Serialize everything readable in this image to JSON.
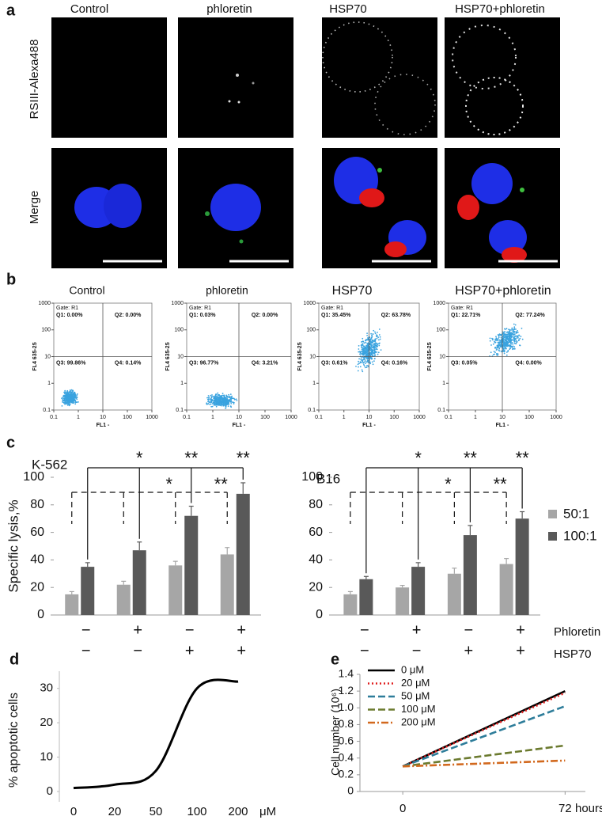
{
  "panel_labels": [
    "a",
    "b",
    "c",
    "d",
    "e"
  ],
  "microscopy": {
    "columns": [
      "Control",
      "phloretin",
      "HSP70",
      "HSP70+phloretin"
    ],
    "rows": [
      "RSIII-Alexa488",
      "Merge"
    ]
  },
  "flow_cytometry": {
    "x_label": "FL1 -",
    "y_label": "FL4 635-25",
    "ticks": [
      0.1,
      1,
      10,
      100,
      1000
    ],
    "plots": [
      {
        "title": "Control",
        "gate": "Gate: R1",
        "quadrants": [
          "Q1: 0.00%",
          "Q2: 0.00%",
          "Q3: 99.86%",
          "Q4: 0.14%"
        ]
      },
      {
        "title": "phloretin",
        "gate": "Gate: R1",
        "quadrants": [
          "Q1: 0.03%",
          "Q2: 0.00%",
          "Q3: 96.77%",
          "Q4: 3.21%"
        ]
      },
      {
        "title": "HSP70",
        "gate": "Gate: R1",
        "quadrants": [
          "Q1: 35.45%",
          "Q2: 63.78%",
          "Q3: 0.61%",
          "Q4: 0.16%"
        ]
      },
      {
        "title": "HSP70+phloretin",
        "gate": "Gate: R1",
        "quadrants": [
          "Q1: 22.71%",
          "Q2: 77.24%",
          "Q3: 0.05%",
          "Q4: 0.00%"
        ]
      }
    ]
  },
  "chart_data": [
    {
      "type": "grouped_bar",
      "y_label": "Specific lysis,%",
      "ylim": [
        0,
        100
      ],
      "yticks": [
        0,
        20,
        40,
        60,
        80,
        100
      ],
      "series": [
        {
          "name": "50:1",
          "color": "#a6a6a6"
        },
        {
          "name": "100:1",
          "color": "#595959"
        }
      ],
      "condition_names": [
        "Phloretin",
        "HSP70"
      ],
      "panels": [
        {
          "title": "K-562",
          "conditions": [
            [
              "−",
              "+",
              "−",
              "+"
            ],
            [
              "−",
              "−",
              "+",
              "+"
            ]
          ],
          "values": [
            [
              15,
              22,
              36,
              44
            ],
            [
              35,
              47,
              72,
              88
            ]
          ],
          "errors": [
            [
              2,
              2.5,
              3,
              5
            ],
            [
              3,
              6,
              7,
              8
            ]
          ],
          "significance": {
            "solid": [
              "*",
              "**",
              "**"
            ],
            "dashed": [
              "*",
              "**"
            ]
          }
        },
        {
          "title": "B16",
          "conditions": [
            [
              "−",
              "+",
              "−",
              "+"
            ],
            [
              "−",
              "−",
              "+",
              "+"
            ]
          ],
          "values": [
            [
              15,
              20,
              30,
              37
            ],
            [
              26,
              35,
              58,
              70
            ]
          ],
          "errors": [
            [
              2,
              1.5,
              4,
              4
            ],
            [
              2,
              3,
              7,
              5
            ]
          ],
          "significance": {
            "solid": [
              "*",
              "**",
              "**"
            ],
            "dashed": [
              "*",
              "**"
            ]
          }
        }
      ]
    },
    {
      "type": "line",
      "y_label": "% apoptotic cells",
      "x_label": "μM",
      "categories": [
        "0",
        "20",
        "50",
        "100",
        "200"
      ],
      "values": [
        1,
        2,
        6,
        30,
        32
      ],
      "color": "#000000",
      "smooth": true,
      "ylim": [
        -3,
        35
      ],
      "yticks": [
        0,
        10,
        20,
        30
      ]
    },
    {
      "type": "line",
      "y_label": "Cell number (10⁶)",
      "x_label": "hours",
      "x": [
        0,
        72
      ],
      "xlim": [
        -19,
        81
      ],
      "xticks": [
        0,
        72
      ],
      "ylim": [
        0,
        1.4
      ],
      "yticks": [
        0,
        0.2,
        0.4,
        0.6,
        0.8,
        {
          "value": 1,
          "label": "1.0"
        },
        1.2,
        1.4
      ],
      "legend": "upper left",
      "series": [
        {
          "name": "0 μM",
          "color": "#000000",
          "dash": "solid",
          "values": [
            0.3,
            1.2
          ]
        },
        {
          "name": "20 μM",
          "color": "#e02020",
          "dash": "dotted",
          "values": [
            0.3,
            1.18
          ]
        },
        {
          "name": "50 μM",
          "color": "#2e7d9a",
          "dash": "dashed",
          "values": [
            0.3,
            1.02
          ]
        },
        {
          "name": "100 μM",
          "color": "#6b7a2e",
          "dash": "dashed",
          "values": [
            0.3,
            0.55
          ]
        },
        {
          "name": "200 μM",
          "color": "#d2691e",
          "dash": "dashdot",
          "values": [
            0.3,
            0.37
          ]
        }
      ]
    }
  ]
}
